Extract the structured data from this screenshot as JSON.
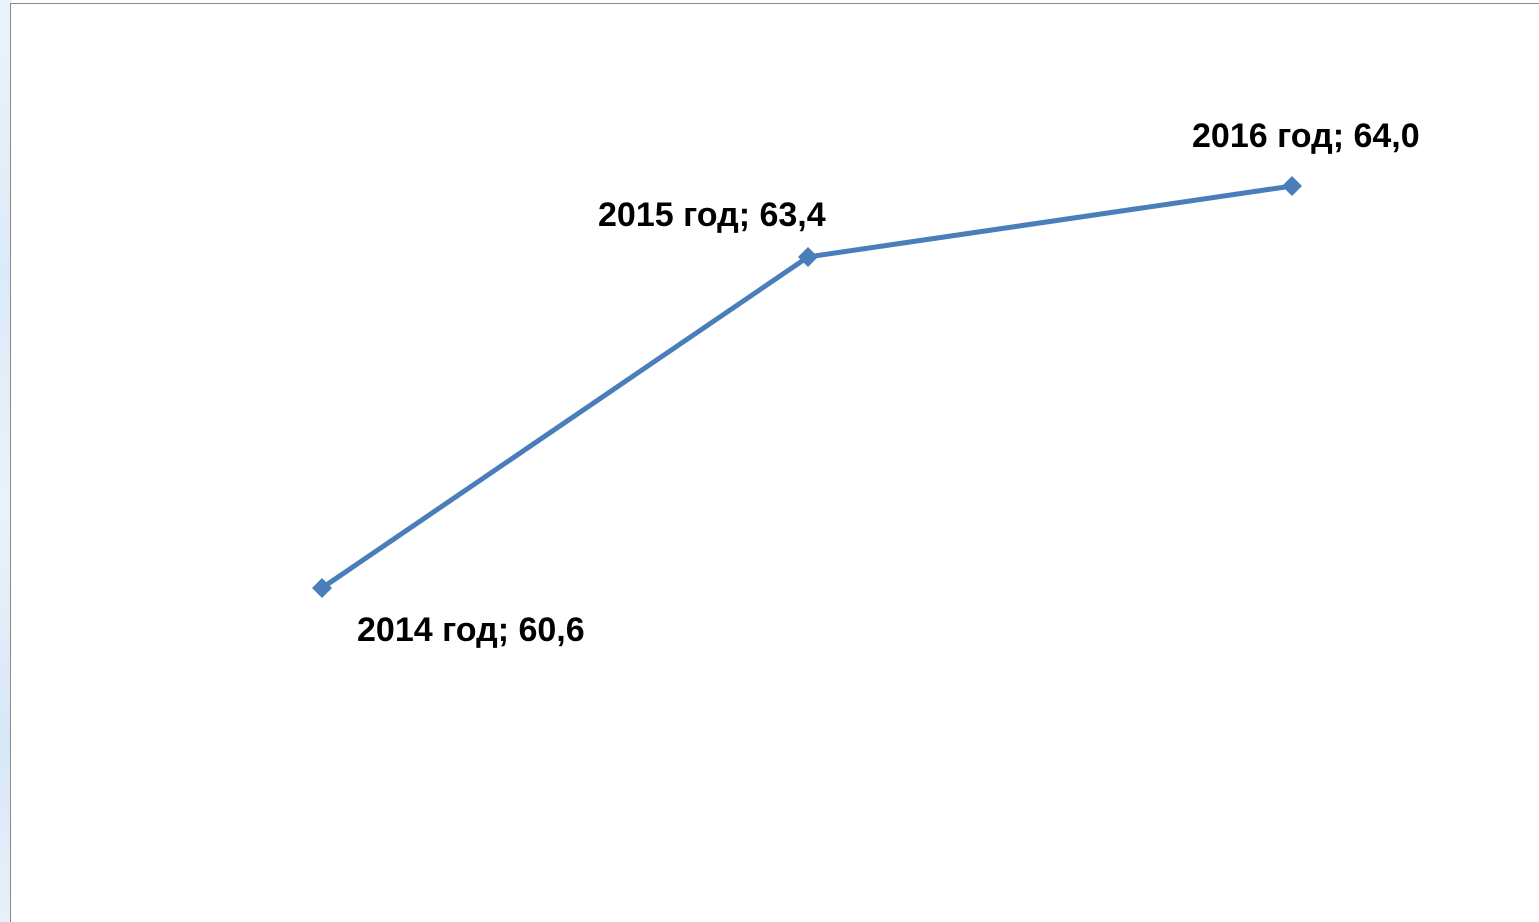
{
  "chart_data": {
    "type": "line",
    "categories": [
      "2014 год",
      "2015 год",
      "2016 год"
    ],
    "series": [
      {
        "values": [
          60.6,
          63.4,
          64.0
        ],
        "color": "#4a7ebb"
      }
    ],
    "data_labels": [
      "2014 год; 60,6",
      "2015 год; 63,4",
      "2016 год; 64,0"
    ],
    "title": "",
    "xlabel": "",
    "ylabel": "",
    "ylim": [
      56,
      71
    ],
    "grid": false,
    "axes_visible": false,
    "legend": "none",
    "marker": "diamond"
  }
}
